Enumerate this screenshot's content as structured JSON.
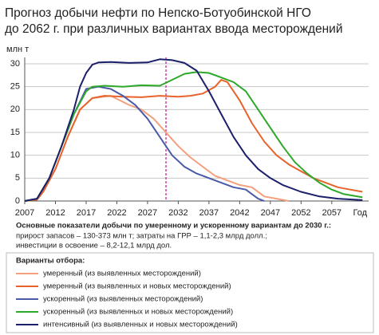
{
  "chart_data": {
    "type": "line",
    "title": [
      "Прогноз добычи нефти по Непско-Ботуобинской НГО",
      "до 2062 г. при различных вариантах ввода месторождений"
    ],
    "y_label": "млн т",
    "x_label": "Год",
    "xlim": [
      2007,
      2063
    ],
    "ylim": [
      0,
      30
    ],
    "xticks": [
      2007,
      2012,
      2017,
      2022,
      2027,
      2032,
      2037,
      2042,
      2047,
      2052,
      2057
    ],
    "yticks": [
      0,
      5,
      10,
      15,
      20,
      25,
      30
    ],
    "grid": true,
    "marker_x": 2030,
    "marker_color": "#c0148c",
    "notes": {
      "heading": "Основные показатели добычи по умеренному и ускоренному вариантам до 2030 г.:",
      "lines": [
        "прирост запасов – 130-373 млн т; затраты на ГРР – 1,1-2,3 млрд долл.;",
        "инвестиции в освоение – 8,2-12,1 млрд дол."
      ]
    },
    "legend_title": "Варианты отбора:",
    "series": [
      {
        "name": "умеренный (из выявленных месторождений)",
        "color": "#f2a07e",
        "x": [
          2007,
          2009,
          2010,
          2012,
          2014,
          2016,
          2018,
          2021,
          2024,
          2026,
          2028,
          2030,
          2032,
          2034,
          2036,
          2038,
          2040,
          2042,
          2044,
          2046,
          2048,
          2050
        ],
        "values": [
          0,
          0.3,
          2,
          7,
          14,
          20,
          22.5,
          23,
          21,
          20,
          18,
          15,
          12,
          9.5,
          7.5,
          5.5,
          4.5,
          3.5,
          3,
          1,
          0.5,
          0
        ]
      },
      {
        "name": "умеренный (из выявленных и новых месторождений)",
        "color": "#e8632b",
        "x": [
          2007,
          2009,
          2010,
          2012,
          2014,
          2016,
          2018,
          2020,
          2023,
          2026,
          2029,
          2032,
          2034,
          2036,
          2038,
          2039,
          2040,
          2042,
          2044,
          2046,
          2048,
          2050,
          2052,
          2054,
          2056,
          2058,
          2060,
          2062
        ],
        "values": [
          0,
          0.3,
          2,
          7,
          14,
          20,
          22.5,
          23,
          22.8,
          22.7,
          23,
          22.8,
          23,
          23.5,
          25,
          26.5,
          26,
          22,
          17,
          13,
          10,
          8,
          6.5,
          5,
          4,
          3,
          2.5,
          2
        ]
      },
      {
        "name": "ускоренный (из выявленных месторождений)",
        "color": "#4a5aa8",
        "x": [
          2007,
          2009,
          2011,
          2013,
          2015,
          2017,
          2019,
          2021,
          2023,
          2025,
          2027,
          2029,
          2031,
          2033,
          2035,
          2037,
          2039,
          2041,
          2043,
          2044,
          2045,
          2046
        ],
        "values": [
          0,
          0.5,
          5,
          12,
          19,
          24.5,
          25,
          24.5,
          23,
          21,
          18,
          14,
          10,
          7.5,
          6,
          5,
          4,
          3,
          2.5,
          1.5,
          0.5,
          0
        ]
      },
      {
        "name": "ускоренный (из выявленных и новых месторождений)",
        "color": "#2ea82a",
        "x": [
          2007,
          2009,
          2011,
          2013,
          2015,
          2017,
          2018,
          2020,
          2023,
          2026,
          2029,
          2031,
          2033,
          2035,
          2037,
          2039,
          2041,
          2043,
          2045,
          2047,
          2049,
          2051,
          2053,
          2055,
          2057,
          2059,
          2062
        ],
        "values": [
          0,
          0.5,
          5,
          12,
          19,
          24,
          25,
          25.2,
          25,
          25.3,
          25.2,
          26.5,
          27.8,
          28.2,
          28,
          27,
          26,
          24,
          20,
          16,
          12,
          8.5,
          6,
          4,
          2.5,
          1.5,
          0.8
        ]
      },
      {
        "name": "интенсивный (из выявленных и новых месторождений)",
        "color": "#1c1f6b",
        "x": [
          2007,
          2009,
          2011,
          2013,
          2015,
          2016,
          2017,
          2018,
          2019,
          2021,
          2024,
          2027,
          2029,
          2031,
          2033,
          2035,
          2037,
          2039,
          2041,
          2043,
          2045,
          2047,
          2049,
          2052,
          2055,
          2058,
          2062
        ],
        "values": [
          0,
          0.5,
          5,
          12,
          20,
          25,
          28,
          29.8,
          30.3,
          30.4,
          30.2,
          30.3,
          31,
          30.8,
          30.2,
          28.5,
          24,
          19,
          14,
          10,
          7,
          5,
          3.5,
          2,
          1,
          0.5,
          0.2
        ]
      }
    ]
  }
}
